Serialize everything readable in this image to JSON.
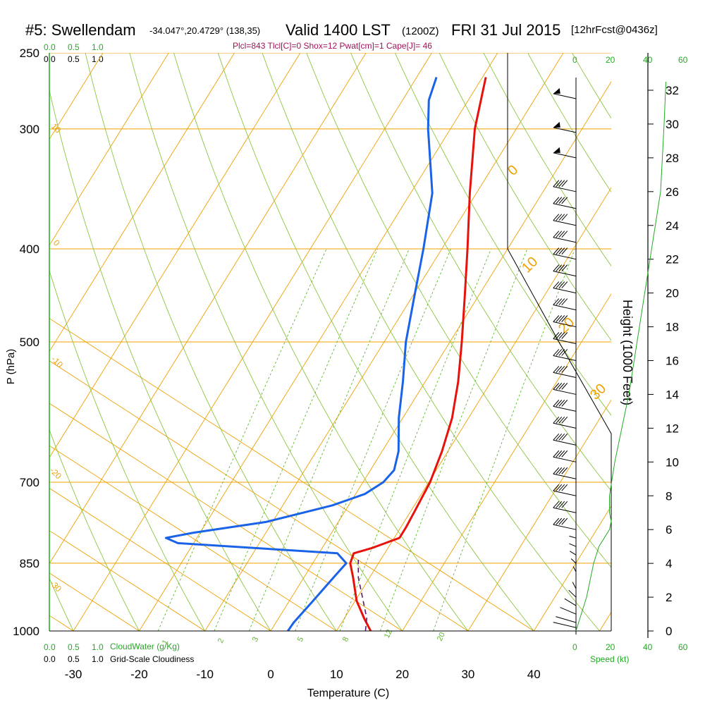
{
  "header": {
    "station": "#5: Swellendam",
    "coords": "-34.047°,20.4729° (138,35)",
    "valid": "Valid 1400 LST",
    "zulu": "(1200Z)",
    "date": "FRI 31 Jul 2015",
    "forecast": "[12hrFcst@0436z]",
    "indices": "Plcl=843 Tlcl[C]=0 Shox=12 Pwat[cm]=1 Cape[J]= 46"
  },
  "colors": {
    "temp": "#e8120c",
    "dew": "#1a63e8",
    "isotherm": "#f0a000",
    "dry_adiabat": "#8cc63f",
    "mixing": "#5fb82f",
    "wind_profile": "#22aa22",
    "parcel": "#5a1a6e"
  },
  "top_scales": {
    "cloudwater_ticks": [
      "0.0",
      "0.5",
      "1.0"
    ],
    "cloudiness_ticks": [
      "0.0",
      "0.5",
      "1.0"
    ],
    "speed_ticks": [
      "0",
      "20",
      "40",
      "60"
    ]
  },
  "bottom_scales": {
    "cloudwater_label": "CloudWater (g/Kg)",
    "cloudiness_label": "Grid-Scale Cloudiness",
    "speed_label": "Speed (kt)"
  },
  "chart_data": {
    "type": "line",
    "title": "Skew-T log-P sounding",
    "xlabel": "Temperature (C)",
    "ylabel": "P (hPa)",
    "y2label": "Height (1000 Feet)",
    "xlim": [
      -33,
      52
    ],
    "ylim": [
      1000,
      250
    ],
    "x_ticks": [
      -30,
      -20,
      -10,
      0,
      10,
      20,
      30,
      40
    ],
    "p_ticks": [
      250,
      300,
      400,
      500,
      700,
      850,
      1000
    ],
    "height_ticks": [
      0,
      2,
      4,
      6,
      8,
      10,
      12,
      14,
      16,
      18,
      20,
      22,
      24,
      26,
      28,
      30,
      32
    ],
    "dry_adiabat_labels": [
      "10",
      "0",
      "-10",
      "-20",
      "-30"
    ],
    "sat_adiabat_labels": [
      "0",
      "10",
      "20",
      "30"
    ],
    "mixing_ratio_labels": [
      "1",
      "2",
      "3",
      "5",
      "8",
      "12",
      "20"
    ],
    "series": [
      {
        "name": "Temperature",
        "points": [
          {
            "p": 1000,
            "t": 15.2
          },
          {
            "p": 970,
            "t": 13.0
          },
          {
            "p": 930,
            "t": 10.2
          },
          {
            "p": 880,
            "t": 7.5
          },
          {
            "p": 850,
            "t": 5.7
          },
          {
            "p": 830,
            "t": 5.3
          },
          {
            "p": 820,
            "t": 7.5
          },
          {
            "p": 800,
            "t": 10.8
          },
          {
            "p": 780,
            "t": 10.8
          },
          {
            "p": 750,
            "t": 10.6
          },
          {
            "p": 700,
            "t": 10.2
          },
          {
            "p": 650,
            "t": 9.1
          },
          {
            "p": 600,
            "t": 7.5
          },
          {
            "p": 550,
            "t": 5.0
          },
          {
            "p": 500,
            "t": 1.8
          },
          {
            "p": 450,
            "t": -1.9
          },
          {
            "p": 400,
            "t": -6.1
          },
          {
            "p": 350,
            "t": -11.0
          },
          {
            "p": 300,
            "t": -16.3
          },
          {
            "p": 265,
            "t": -19.5
          }
        ]
      },
      {
        "name": "Dew Point",
        "points": [
          {
            "p": 1000,
            "t": 2.6
          },
          {
            "p": 980,
            "t": 2.7
          },
          {
            "p": 930,
            "t": 3.6
          },
          {
            "p": 880,
            "t": 4.5
          },
          {
            "p": 850,
            "t": 5.1
          },
          {
            "p": 830,
            "t": 2.8
          },
          {
            "p": 810,
            "t": -22.4
          },
          {
            "p": 800,
            "t": -24.7
          },
          {
            "p": 790,
            "t": -21.0
          },
          {
            "p": 770,
            "t": -11.0
          },
          {
            "p": 740,
            "t": -2.5
          },
          {
            "p": 720,
            "t": 1.4
          },
          {
            "p": 700,
            "t": 3.1
          },
          {
            "p": 680,
            "t": 3.6
          },
          {
            "p": 650,
            "t": 2.5
          },
          {
            "p": 600,
            "t": -0.6
          },
          {
            "p": 550,
            "t": -3.4
          },
          {
            "p": 500,
            "t": -6.7
          },
          {
            "p": 450,
            "t": -9.6
          },
          {
            "p": 400,
            "t": -12.8
          },
          {
            "p": 350,
            "t": -16.7
          },
          {
            "p": 300,
            "t": -23.4
          },
          {
            "p": 280,
            "t": -26.0
          },
          {
            "p": 265,
            "t": -27.0
          }
        ]
      },
      {
        "name": "Parcel",
        "points": [
          {
            "p": 1000,
            "t": 14.4
          },
          {
            "p": 970,
            "t": 13.4
          },
          {
            "p": 930,
            "t": 11.2
          },
          {
            "p": 880,
            "t": 8.3
          },
          {
            "p": 843,
            "t": 6.6
          }
        ]
      }
    ],
    "surface_markers": [
      {
        "name": "surface-temperature",
        "p": 1000,
        "t": 15.8
      },
      {
        "name": "surface-dewpoint",
        "p": 1000,
        "t": 4.1
      }
    ],
    "wind_barb_heights_kft": [
      0.2,
      0.5,
      1,
      1.5,
      2,
      2.5,
      3,
      3.5,
      4,
      4.5,
      5,
      5.5,
      6,
      7,
      8,
      9,
      10,
      11,
      12,
      13,
      14,
      15,
      16,
      17,
      18,
      19,
      20,
      21,
      22,
      23,
      24,
      25,
      26,
      28,
      29.5,
      31.5
    ],
    "wind_speed_profile": [
      {
        "h": 0,
        "kt": 0
      },
      {
        "h": 1,
        "kt": 3
      },
      {
        "h": 2,
        "kt": 6
      },
      {
        "h": 3,
        "kt": 8
      },
      {
        "h": 4,
        "kt": 10
      },
      {
        "h": 5,
        "kt": 13
      },
      {
        "h": 6,
        "kt": 19
      },
      {
        "h": 6.5,
        "kt": 20
      },
      {
        "h": 7,
        "kt": 19
      },
      {
        "h": 8,
        "kt": 19
      },
      {
        "h": 10,
        "kt": 22
      },
      {
        "h": 12,
        "kt": 26
      },
      {
        "h": 14,
        "kt": 30
      },
      {
        "h": 16,
        "kt": 33
      },
      {
        "h": 18,
        "kt": 36
      },
      {
        "h": 20,
        "kt": 39
      },
      {
        "h": 22,
        "kt": 42
      },
      {
        "h": 24,
        "kt": 45
      },
      {
        "h": 26,
        "kt": 48
      },
      {
        "h": 28,
        "kt": 49
      },
      {
        "h": 30,
        "kt": 50
      },
      {
        "h": 32.5,
        "kt": 51
      }
    ]
  }
}
